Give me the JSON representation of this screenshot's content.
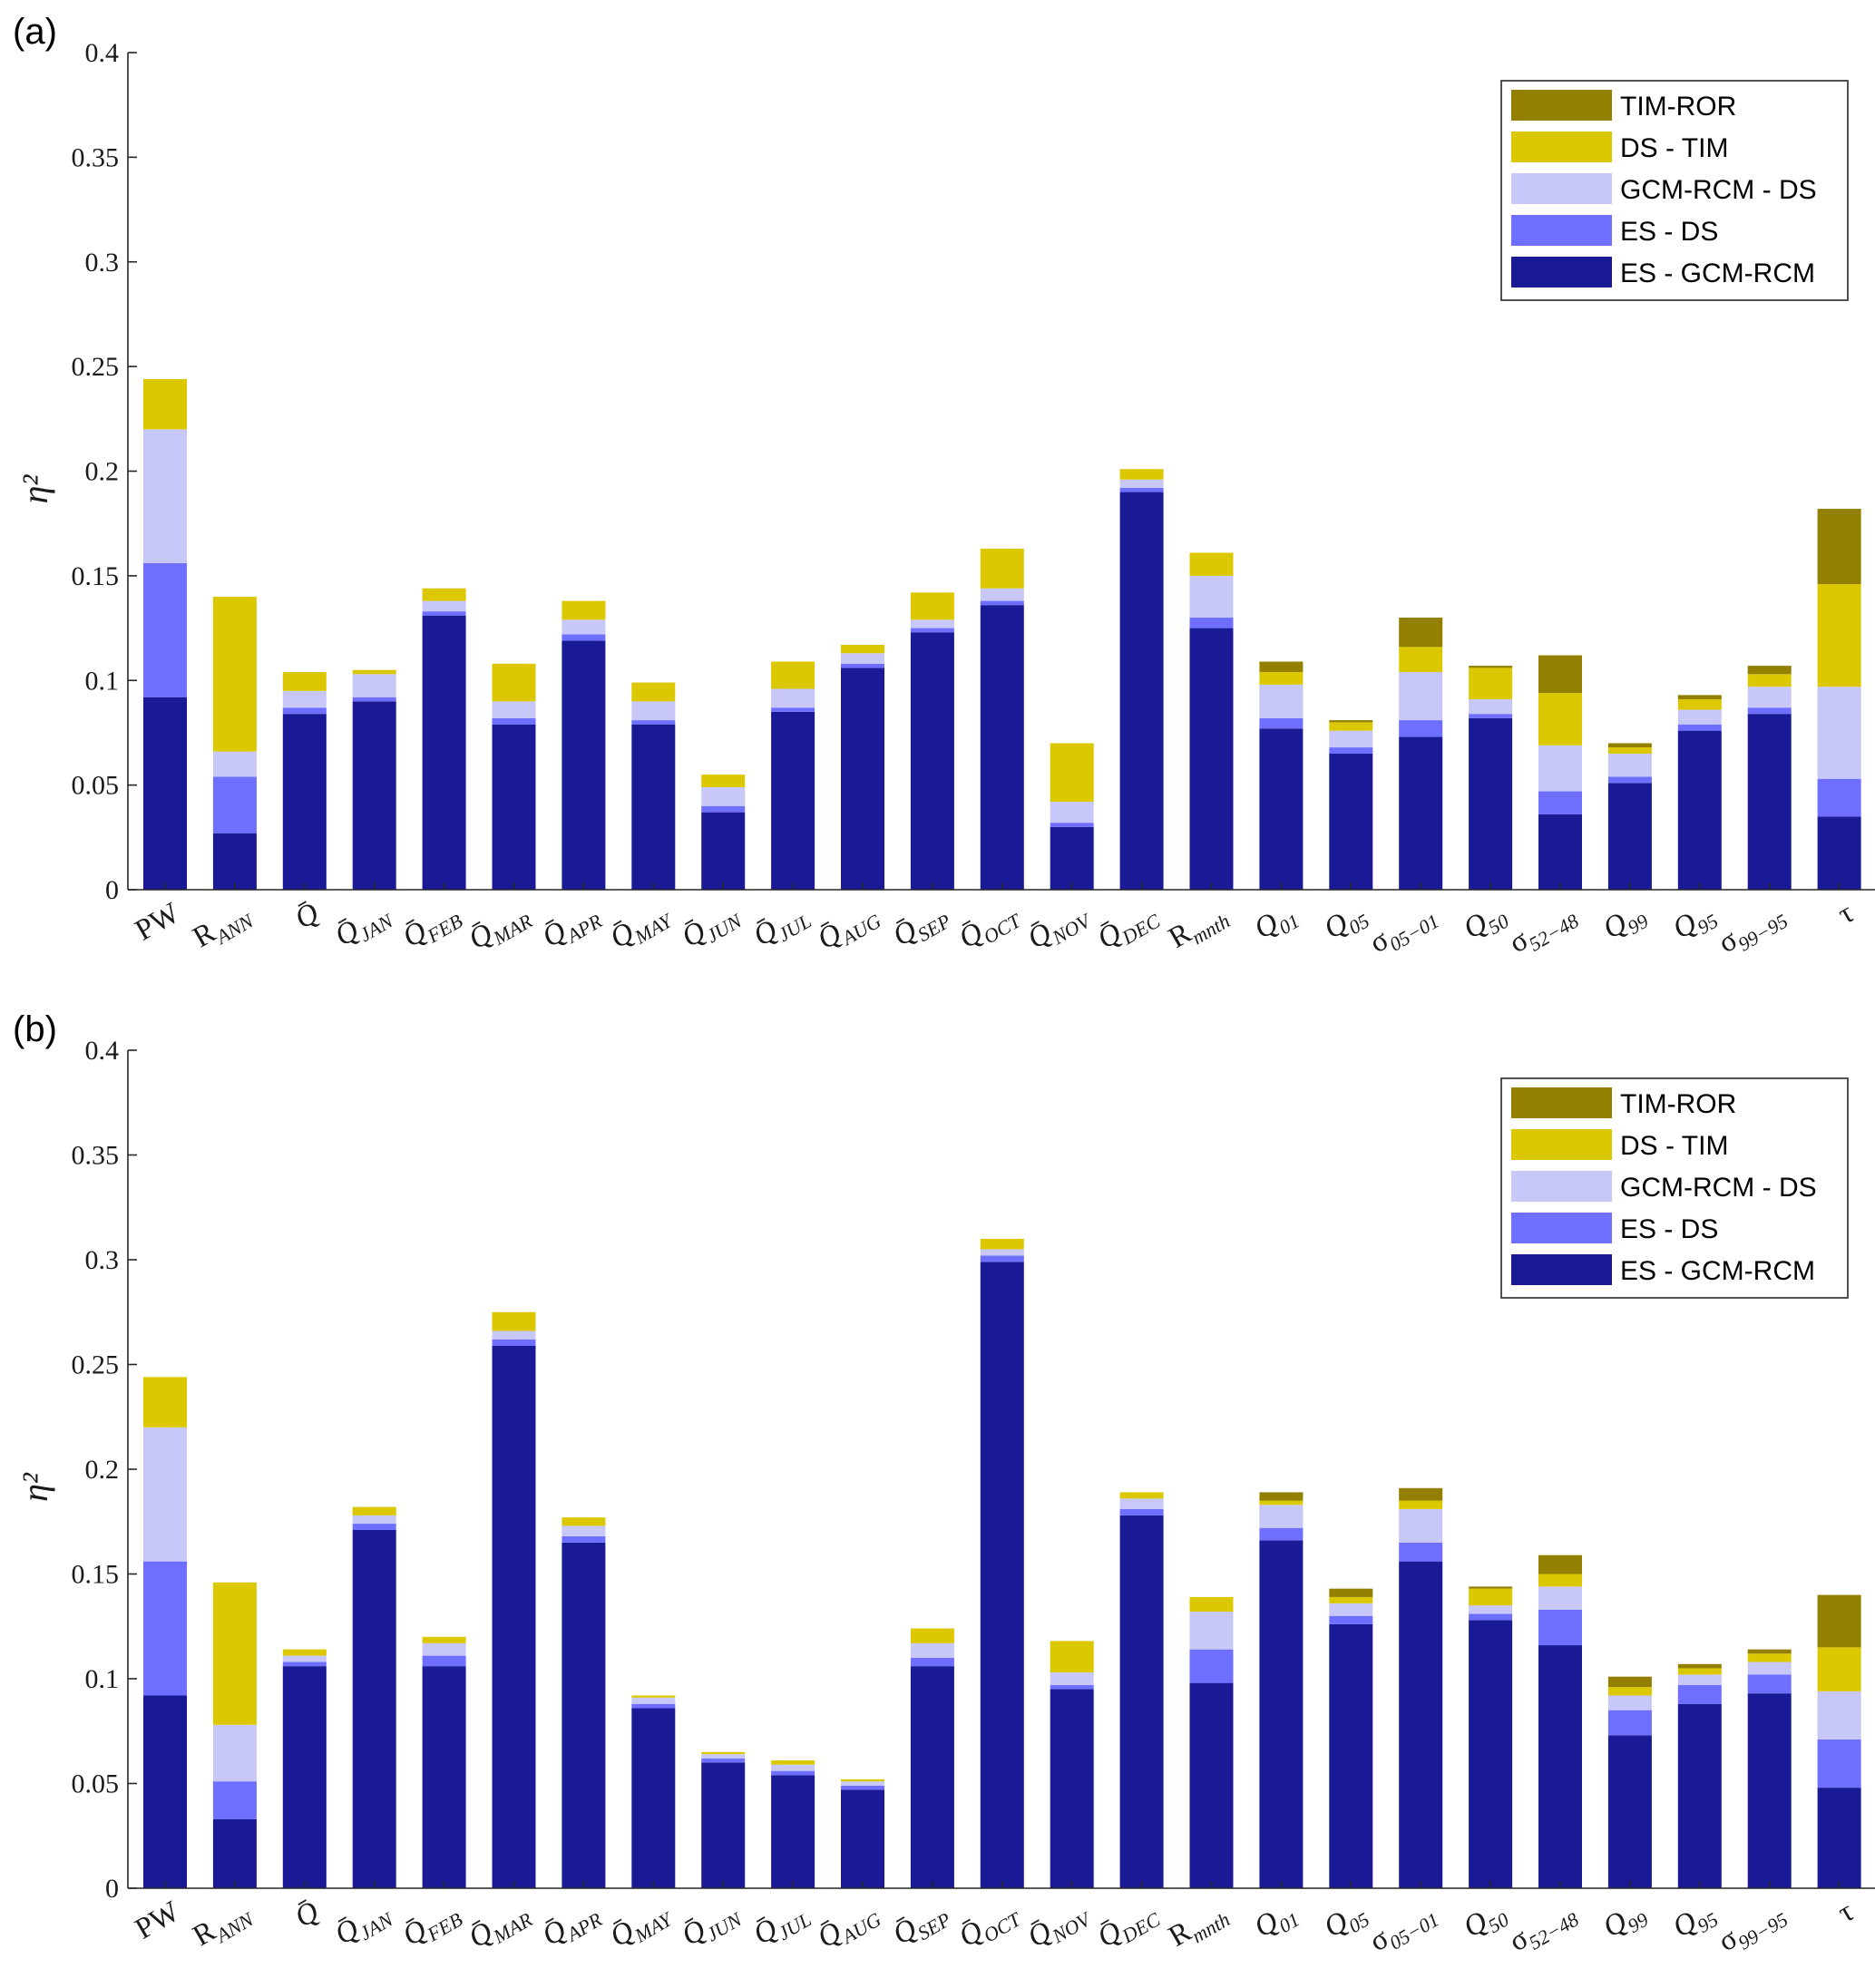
{
  "chart_data": [
    {
      "type": "bar",
      "stacked": true,
      "panel_label": "(a)",
      "ylabel": "η²",
      "ylim": [
        0,
        0.4
      ],
      "yticks": [
        "0",
        "0.05",
        "0.1",
        "0.15",
        "0.2",
        "0.25",
        "0.3",
        "0.35",
        "0.4"
      ],
      "grid": false,
      "legend_position": "top-right",
      "categories": [
        "PW",
        "R_ANN",
        "Q̄",
        "Q̄_JAN",
        "Q̄_FEB",
        "Q̄_MAR",
        "Q̄_APR",
        "Q̄_MAY",
        "Q̄_JUN",
        "Q̄_JUL",
        "Q̄_AUG",
        "Q̄_SEP",
        "Q̄_OCT",
        "Q̄_NOV",
        "Q̄_DEC",
        "R_mnth",
        "Q_01",
        "Q_05",
        "σ_05−01",
        "Q_50",
        "σ_52−48",
        "Q_99",
        "Q_95",
        "σ_99−95",
        "τ"
      ],
      "series": [
        {
          "name": "ES - GCM-RCM",
          "color": "#1a1a96",
          "values": [
            0.092,
            0.027,
            0.084,
            0.09,
            0.131,
            0.079,
            0.119,
            0.079,
            0.037,
            0.085,
            0.106,
            0.123,
            0.136,
            0.03,
            0.19,
            0.125,
            0.077,
            0.065,
            0.073,
            0.082,
            0.036,
            0.051,
            0.076,
            0.084,
            0.035
          ]
        },
        {
          "name": "ES - DS",
          "color": "#6e6eff",
          "values": [
            0.064,
            0.027,
            0.003,
            0.002,
            0.002,
            0.003,
            0.003,
            0.002,
            0.003,
            0.002,
            0.002,
            0.002,
            0.002,
            0.002,
            0.002,
            0.005,
            0.005,
            0.003,
            0.008,
            0.002,
            0.011,
            0.003,
            0.003,
            0.003,
            0.018
          ]
        },
        {
          "name": "GCM-RCM - DS",
          "color": "#c8c8f8",
          "values": [
            0.064,
            0.012,
            0.008,
            0.011,
            0.005,
            0.008,
            0.007,
            0.009,
            0.009,
            0.009,
            0.005,
            0.004,
            0.006,
            0.01,
            0.004,
            0.02,
            0.016,
            0.008,
            0.023,
            0.007,
            0.022,
            0.011,
            0.007,
            0.01,
            0.044
          ]
        },
        {
          "name": "DS - TIM",
          "color": "#dcc800",
          "values": [
            0.024,
            0.074,
            0.009,
            0.002,
            0.006,
            0.018,
            0.009,
            0.009,
            0.006,
            0.013,
            0.004,
            0.013,
            0.019,
            0.028,
            0.005,
            0.011,
            0.006,
            0.004,
            0.012,
            0.015,
            0.025,
            0.003,
            0.005,
            0.006,
            0.049
          ]
        },
        {
          "name": "TIM-ROR",
          "color": "#948000",
          "values": [
            0,
            0,
            0,
            0,
            0,
            0,
            0,
            0,
            0,
            0,
            0,
            0,
            0,
            0,
            0,
            0,
            0.005,
            0.001,
            0.014,
            0.001,
            0.018,
            0.002,
            0.002,
            0.004,
            0.036
          ]
        }
      ]
    },
    {
      "type": "bar",
      "stacked": true,
      "panel_label": "(b)",
      "ylabel": "η²",
      "ylim": [
        0,
        0.4
      ],
      "yticks": [
        "0",
        "0.05",
        "0.1",
        "0.15",
        "0.2",
        "0.25",
        "0.3",
        "0.35",
        "0.4"
      ],
      "grid": false,
      "legend_position": "top-right",
      "categories": [
        "PW",
        "R_ANN",
        "Q̄",
        "Q̄_JAN",
        "Q̄_FEB",
        "Q̄_MAR",
        "Q̄_APR",
        "Q̄_MAY",
        "Q̄_JUN",
        "Q̄_JUL",
        "Q̄_AUG",
        "Q̄_SEP",
        "Q̄_OCT",
        "Q̄_NOV",
        "Q̄_DEC",
        "R_mnth",
        "Q_01",
        "Q_05",
        "σ_05−01",
        "Q_50",
        "σ_52−48",
        "Q_99",
        "Q_95",
        "σ_99−95",
        "τ"
      ],
      "series": [
        {
          "name": "ES - GCM-RCM",
          "color": "#1a1a96",
          "values": [
            0.092,
            0.033,
            0.106,
            0.171,
            0.106,
            0.259,
            0.165,
            0.086,
            0.06,
            0.054,
            0.047,
            0.106,
            0.299,
            0.095,
            0.178,
            0.098,
            0.166,
            0.126,
            0.156,
            0.128,
            0.116,
            0.073,
            0.088,
            0.093,
            0.048
          ]
        },
        {
          "name": "ES - DS",
          "color": "#6e6eff",
          "values": [
            0.064,
            0.018,
            0.002,
            0.003,
            0.005,
            0.003,
            0.003,
            0.002,
            0.002,
            0.002,
            0.002,
            0.004,
            0.003,
            0.002,
            0.003,
            0.016,
            0.006,
            0.004,
            0.009,
            0.003,
            0.017,
            0.012,
            0.009,
            0.009,
            0.023
          ]
        },
        {
          "name": "GCM-RCM - DS",
          "color": "#c8c8f8",
          "values": [
            0.064,
            0.027,
            0.003,
            0.004,
            0.006,
            0.004,
            0.005,
            0.003,
            0.002,
            0.003,
            0.002,
            0.007,
            0.003,
            0.006,
            0.005,
            0.018,
            0.011,
            0.006,
            0.016,
            0.004,
            0.011,
            0.007,
            0.005,
            0.006,
            0.023
          ]
        },
        {
          "name": "DS - TIM",
          "color": "#dcc800",
          "values": [
            0.024,
            0.068,
            0.003,
            0.004,
            0.003,
            0.009,
            0.004,
            0.001,
            0.001,
            0.002,
            0.001,
            0.007,
            0.005,
            0.015,
            0.003,
            0.007,
            0.002,
            0.003,
            0.004,
            0.008,
            0.006,
            0.004,
            0.003,
            0.004,
            0.021
          ]
        },
        {
          "name": "TIM-ROR",
          "color": "#948000",
          "values": [
            0,
            0,
            0,
            0,
            0,
            0,
            0,
            0,
            0,
            0,
            0,
            0,
            0,
            0,
            0,
            0,
            0.004,
            0.004,
            0.006,
            0.001,
            0.009,
            0.005,
            0.002,
            0.002,
            0.025
          ]
        }
      ]
    }
  ]
}
